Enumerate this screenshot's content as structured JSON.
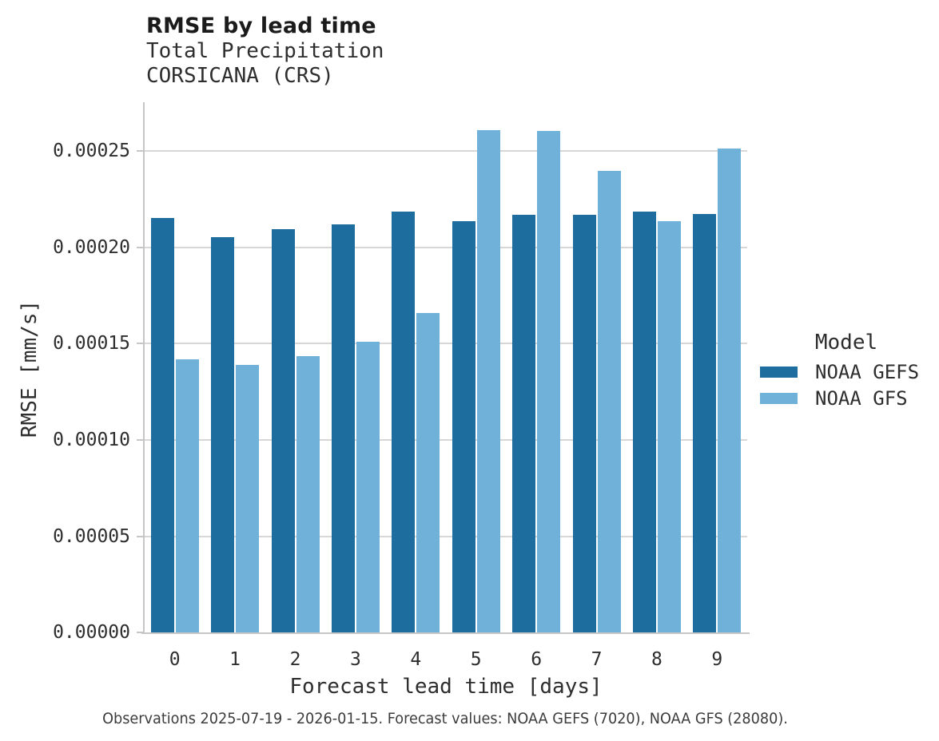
{
  "chart_data": {
    "type": "bar",
    "title": "RMSE by lead time",
    "subtitle_lines": [
      "Total Precipitation",
      "CORSICANA (CRS)"
    ],
    "xlabel": "Forecast lead time [days]",
    "ylabel": "RMSE [mm/s]",
    "categories": [
      "0",
      "1",
      "2",
      "3",
      "4",
      "5",
      "6",
      "7",
      "8",
      "9"
    ],
    "series": [
      {
        "name": "NOAA GEFS",
        "color": "#1d6e9e",
        "values": [
          0.0002155,
          0.0002055,
          0.0002095,
          0.000212,
          0.0002185,
          0.0002135,
          0.000217,
          0.000217,
          0.0002185,
          0.0002175
        ]
      },
      {
        "name": "NOAA GFS",
        "color": "#70b1d9",
        "values": [
          0.000142,
          0.000139,
          0.0001435,
          0.000151,
          0.000166,
          0.000261,
          0.0002605,
          0.00024,
          0.0002135,
          0.0002515
        ]
      }
    ],
    "ylim": [
      0,
      0.0002755
    ],
    "yticks": [
      0,
      5e-05,
      0.0001,
      0.00015,
      0.0002,
      0.00025
    ],
    "ytick_labels": [
      "0.00000",
      "0.00005",
      "0.00010",
      "0.00015",
      "0.00020",
      "0.00025"
    ],
    "grid": "horizontal",
    "legend_title": "Model",
    "legend_position": "right",
    "caption": "Observations 2025-07-19 - 2026-01-15. Forecast values: NOAA GEFS (7020), NOAA GFS (28080)."
  }
}
